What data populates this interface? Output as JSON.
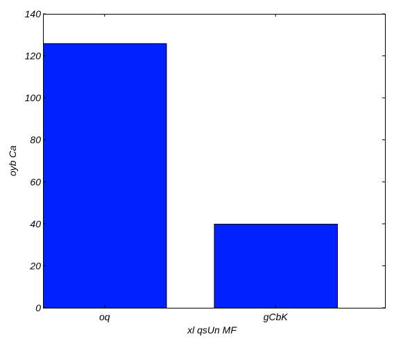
{
  "chart_data": {
    "type": "bar",
    "categories": [
      "oq",
      "gCbK"
    ],
    "values": [
      126,
      40
    ],
    "title": "",
    "xlabel": "xl qsUn MF",
    "ylabel": "oyb Ca",
    "ylim": [
      0,
      140
    ],
    "yticks": [
      0,
      20,
      40,
      60,
      80,
      100,
      120,
      140
    ],
    "bar_color": "#0022ff",
    "grid": false,
    "legend": "none"
  }
}
